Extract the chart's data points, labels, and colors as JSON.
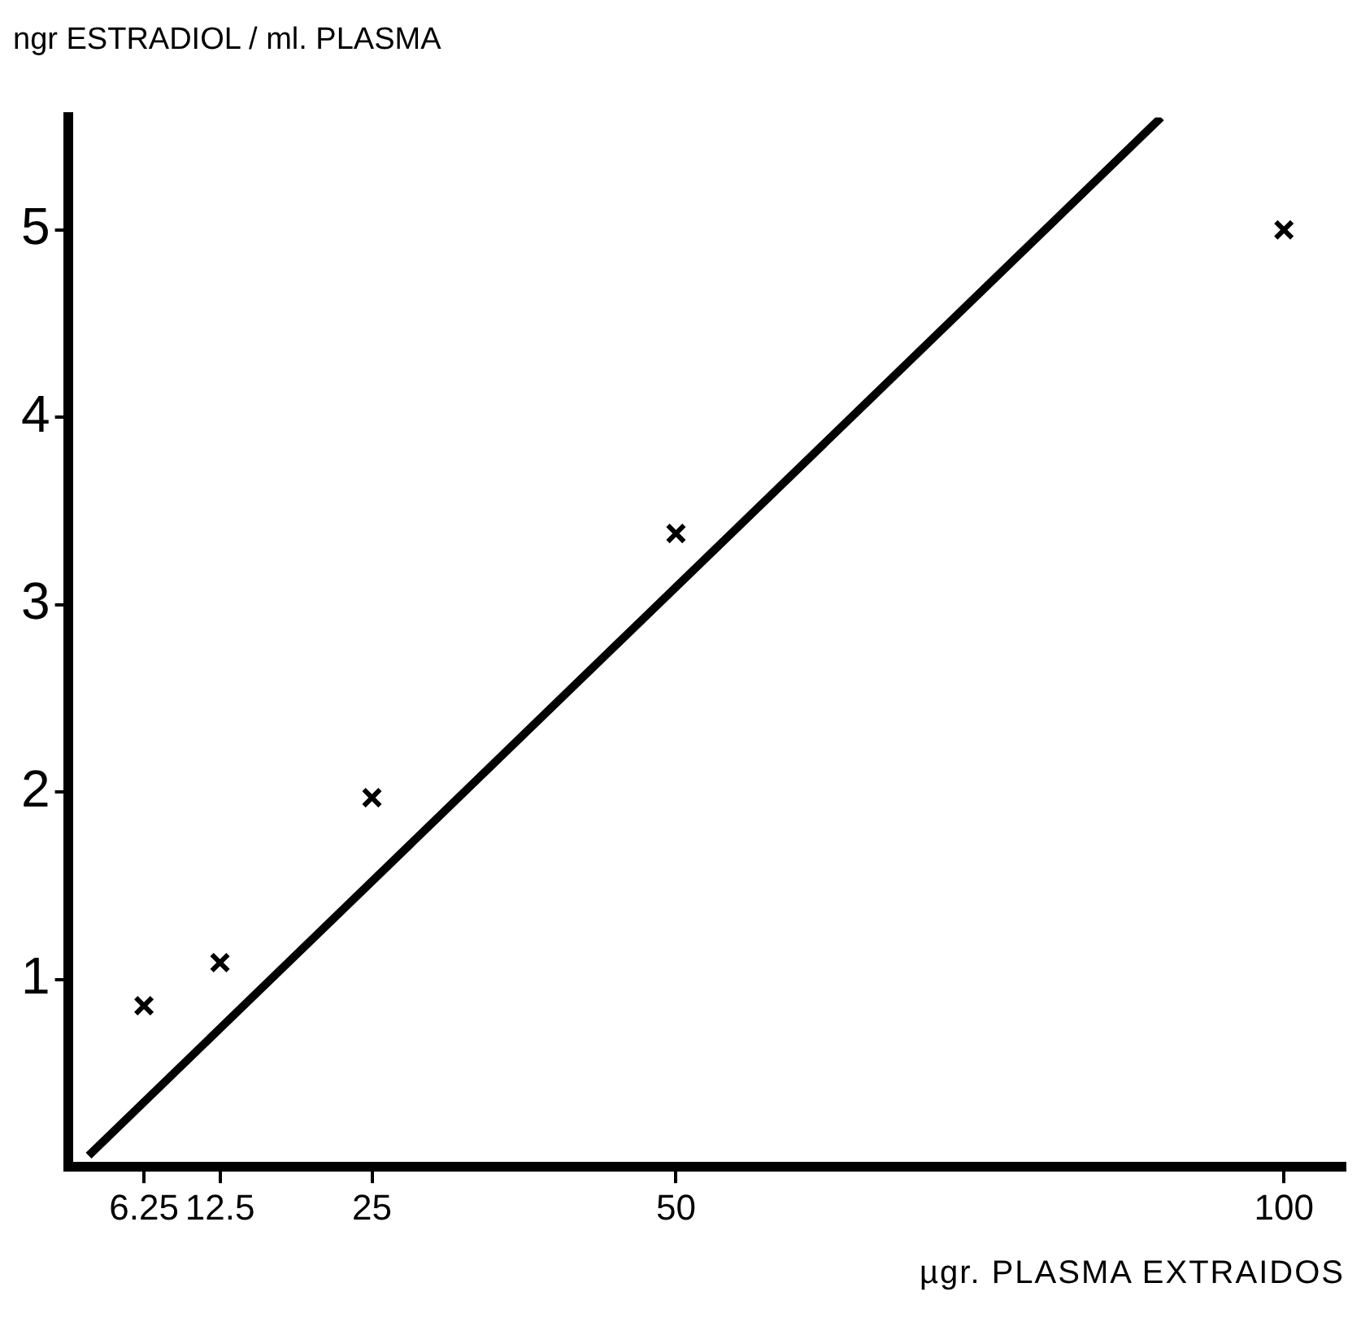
{
  "chart_data": {
    "type": "scatter",
    "xlabel": "µgr. PLASMA EXTRAIDOS",
    "ylabel": "ngr ESTRADIOL / ml. PLASMA",
    "series": [
      {
        "type": "scatter",
        "color": "#000000",
        "marker": "cross",
        "x": [
          6.25,
          12.5,
          25,
          50,
          100
        ],
        "values": [
          0.86,
          1.09,
          1.97,
          3.38,
          5.0
        ]
      },
      {
        "type": "line",
        "color": "#000000",
        "marker": "none",
        "line_style": "solid",
        "x": [
          1.7,
          89.9
        ],
        "values": [
          0.06,
          5.6
        ]
      }
    ],
    "xlim": [
      0,
      105
    ],
    "xticks": [
      6.25,
      12.5,
      25,
      50,
      100
    ],
    "ylim": [
      0,
      5.6
    ],
    "yticks": [
      1,
      2,
      3,
      4,
      5
    ],
    "grid": false,
    "legend": false
  }
}
